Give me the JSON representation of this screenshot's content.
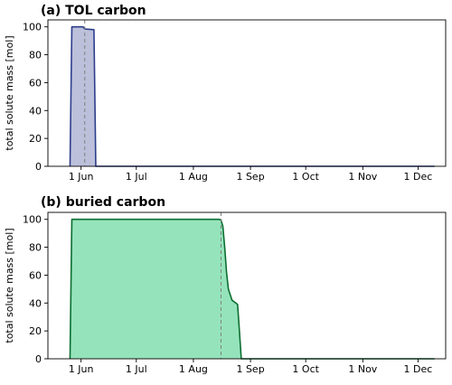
{
  "chart_data": [
    {
      "type": "area",
      "title": "(a) TOL carbon",
      "xlabel": "",
      "ylabel": "total solute mass [mol]",
      "xlim": [
        "2020-05-14",
        "2020-12-16"
      ],
      "ylim": [
        0,
        105
      ],
      "x_ticks": [
        "2020-06-01",
        "2020-07-01",
        "2020-08-01",
        "2020-09-01",
        "2020-10-01",
        "2020-11-01",
        "2020-12-01"
      ],
      "x_tick_labels": [
        "1 Jun",
        "1 Jul",
        "1 Aug",
        "1 Sep",
        "1 Oct",
        "1 Nov",
        "1 Dec"
      ],
      "y_ticks": [
        0,
        20,
        40,
        60,
        80,
        100
      ],
      "fill_color": "#bcc0da",
      "line_color": "#2e3e8c",
      "series": [
        {
          "x": [
            "2020-05-26",
            "2020-05-27",
            "2020-06-02",
            "2020-06-03",
            "2020-06-08",
            "2020-06-09",
            "2020-06-10",
            "2020-12-10"
          ],
          "y": [
            0,
            100,
            100,
            98.5,
            98,
            0,
            0,
            0
          ]
        }
      ],
      "vline": {
        "x": "2020-06-03",
        "color": "#808080",
        "style": "dashed"
      }
    },
    {
      "type": "area",
      "title": "(b) buried carbon",
      "xlabel": "",
      "ylabel": "total solute mass [mol]",
      "xlim": [
        "2020-05-14",
        "2020-12-16"
      ],
      "ylim": [
        0,
        105
      ],
      "x_ticks": [
        "2020-06-01",
        "2020-07-01",
        "2020-08-01",
        "2020-09-01",
        "2020-10-01",
        "2020-11-01",
        "2020-12-01"
      ],
      "x_tick_labels": [
        "1 Jun",
        "1 Jul",
        "1 Aug",
        "1 Sep",
        "1 Oct",
        "1 Nov",
        "1 Dec"
      ],
      "y_ticks": [
        0,
        20,
        40,
        60,
        80,
        100
      ],
      "fill_color": "#95e3bb",
      "line_color": "#0c6e31",
      "series": [
        {
          "x": [
            "2020-05-26",
            "2020-05-27",
            "2020-08-15",
            "2020-08-16",
            "2020-08-17",
            "2020-08-18",
            "2020-08-19",
            "2020-08-20",
            "2020-08-22",
            "2020-08-24",
            "2020-08-25",
            "2020-08-26",
            "2020-08-27",
            "2020-12-10"
          ],
          "y": [
            0,
            100,
            100,
            99.5,
            95,
            80,
            62,
            50,
            42,
            40,
            39,
            20,
            0,
            0
          ]
        }
      ],
      "vline": {
        "x": "2020-08-16",
        "color": "#808080",
        "style": "dashed"
      }
    }
  ]
}
